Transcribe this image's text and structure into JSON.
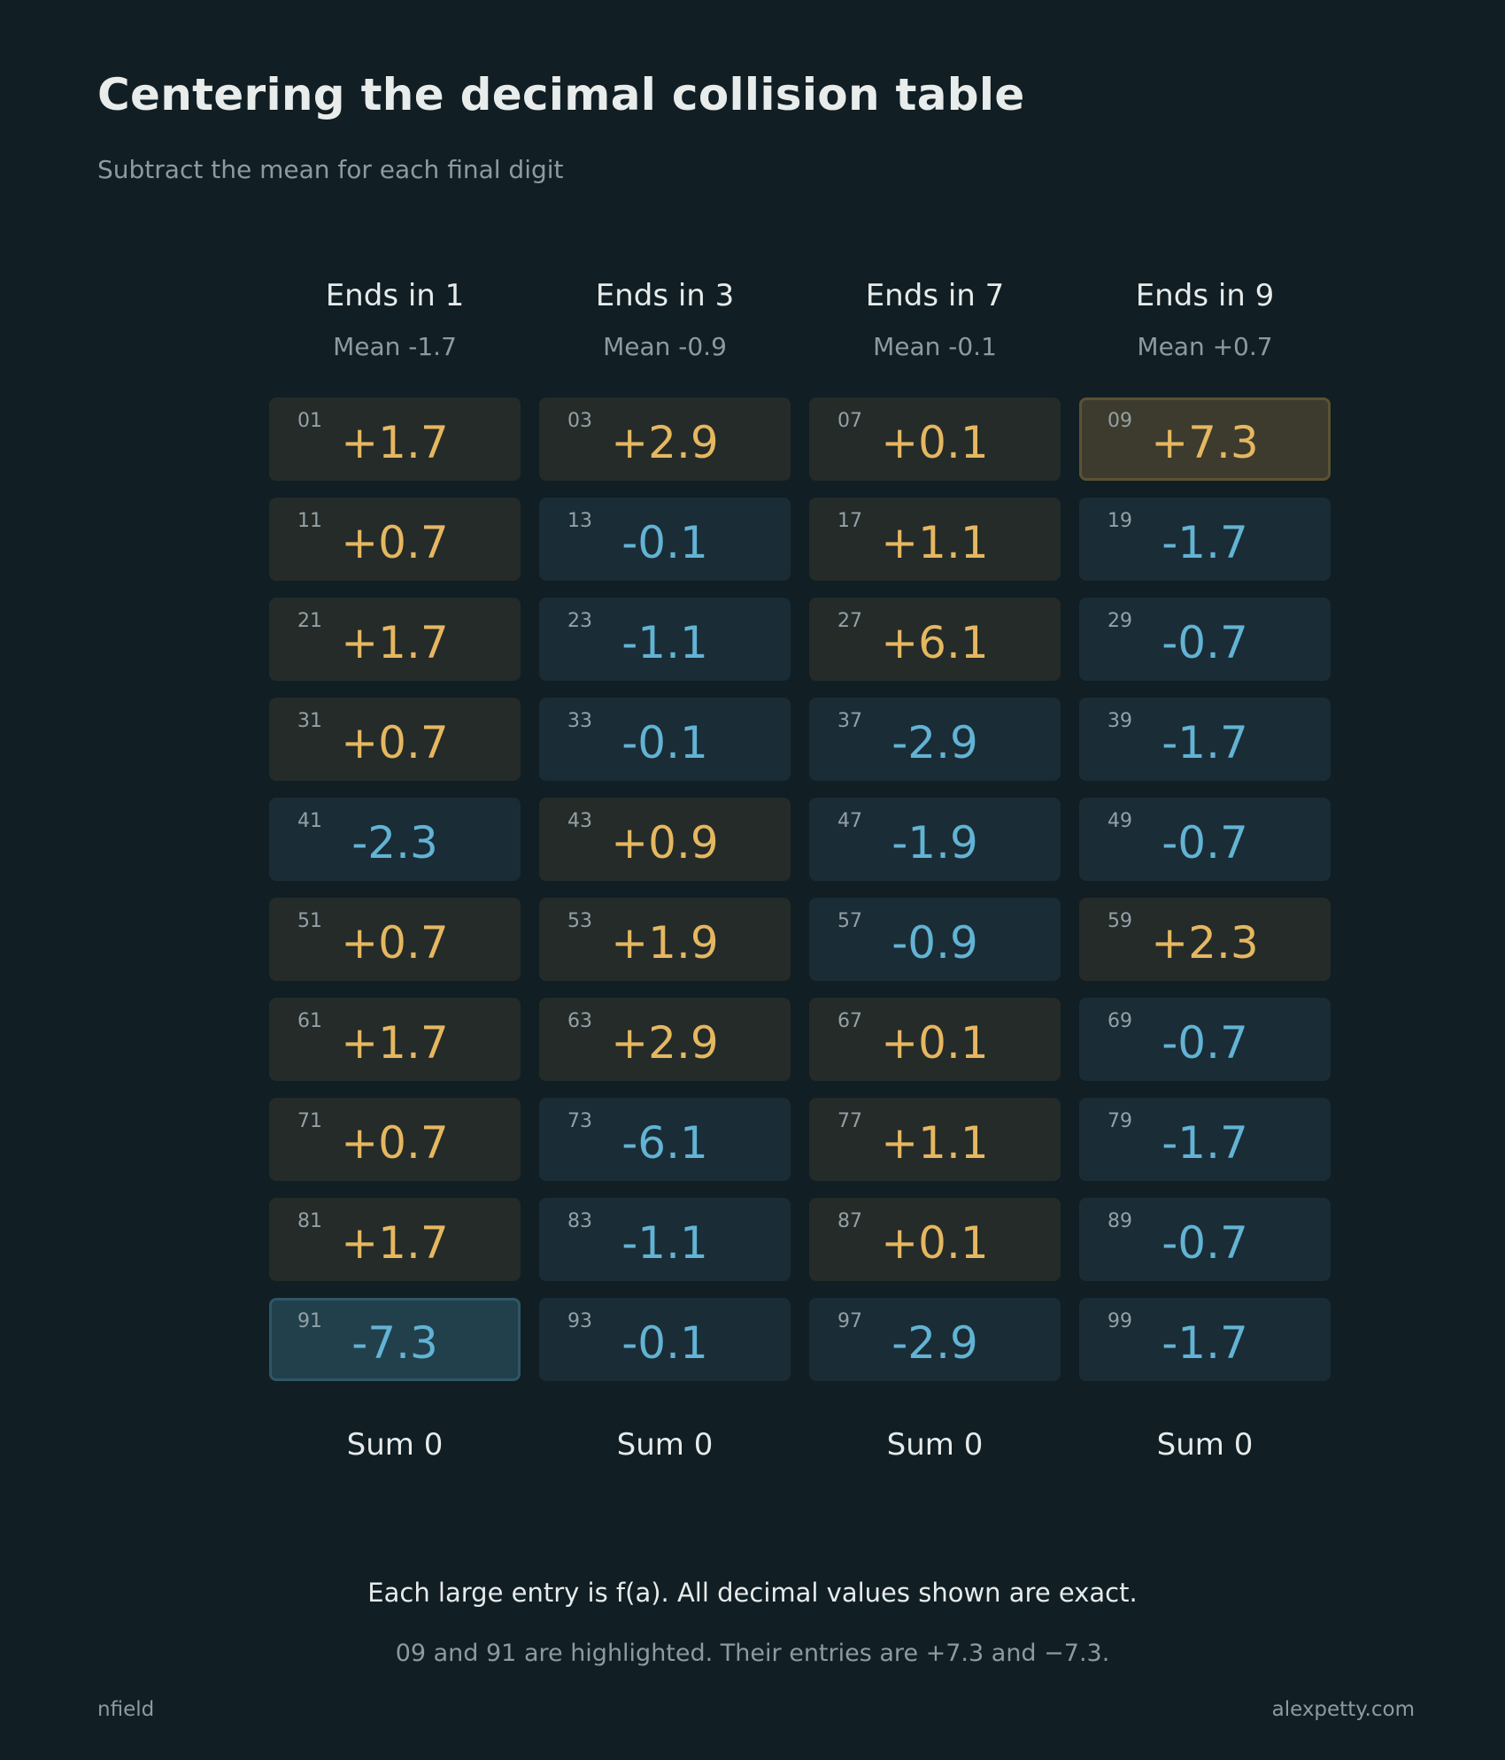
{
  "title": "Centering the decimal collision table",
  "subtitle": "Subtract the mean for each final digit",
  "colors": {
    "background": "#111e24",
    "positive": "#e5b760",
    "negative": "#62b3d4",
    "positive_cell": "#252b29",
    "negative_cell": "#1a2c36"
  },
  "columns": [
    {
      "header": "Ends in 1",
      "mean": "Mean -1.7",
      "sum": "Sum 0",
      "cells": [
        {
          "num": "01",
          "val": "+1.7"
        },
        {
          "num": "11",
          "val": "+0.7"
        },
        {
          "num": "21",
          "val": "+1.7"
        },
        {
          "num": "31",
          "val": "+0.7"
        },
        {
          "num": "41",
          "val": "-2.3"
        },
        {
          "num": "51",
          "val": "+0.7"
        },
        {
          "num": "61",
          "val": "+1.7"
        },
        {
          "num": "71",
          "val": "+0.7"
        },
        {
          "num": "81",
          "val": "+1.7"
        },
        {
          "num": "91",
          "val": "-7.3",
          "highlight": true
        }
      ]
    },
    {
      "header": "Ends in 3",
      "mean": "Mean -0.9",
      "sum": "Sum 0",
      "cells": [
        {
          "num": "03",
          "val": "+2.9"
        },
        {
          "num": "13",
          "val": "-0.1"
        },
        {
          "num": "23",
          "val": "-1.1"
        },
        {
          "num": "33",
          "val": "-0.1"
        },
        {
          "num": "43",
          "val": "+0.9"
        },
        {
          "num": "53",
          "val": "+1.9"
        },
        {
          "num": "63",
          "val": "+2.9"
        },
        {
          "num": "73",
          "val": "-6.1"
        },
        {
          "num": "83",
          "val": "-1.1"
        },
        {
          "num": "93",
          "val": "-0.1"
        }
      ]
    },
    {
      "header": "Ends in 7",
      "mean": "Mean -0.1",
      "sum": "Sum 0",
      "cells": [
        {
          "num": "07",
          "val": "+0.1"
        },
        {
          "num": "17",
          "val": "+1.1"
        },
        {
          "num": "27",
          "val": "+6.1"
        },
        {
          "num": "37",
          "val": "-2.9"
        },
        {
          "num": "47",
          "val": "-1.9"
        },
        {
          "num": "57",
          "val": "-0.9"
        },
        {
          "num": "67",
          "val": "+0.1"
        },
        {
          "num": "77",
          "val": "+1.1"
        },
        {
          "num": "87",
          "val": "+0.1"
        },
        {
          "num": "97",
          "val": "-2.9"
        }
      ]
    },
    {
      "header": "Ends in 9",
      "mean": "Mean +0.7",
      "sum": "Sum 0",
      "cells": [
        {
          "num": "09",
          "val": "+7.3",
          "highlight": true
        },
        {
          "num": "19",
          "val": "-1.7"
        },
        {
          "num": "29",
          "val": "-0.7"
        },
        {
          "num": "39",
          "val": "-1.7"
        },
        {
          "num": "49",
          "val": "-0.7"
        },
        {
          "num": "59",
          "val": "+2.3"
        },
        {
          "num": "69",
          "val": "-0.7"
        },
        {
          "num": "79",
          "val": "-1.7"
        },
        {
          "num": "89",
          "val": "-0.7"
        },
        {
          "num": "99",
          "val": "-1.7"
        }
      ]
    }
  ],
  "note_main": "Each large entry is f(a). All decimal values shown are exact.",
  "note_highlight": "09 and 91 are highlighted. Their entries are +7.3 and −7.3.",
  "footer_left": "nfield",
  "footer_right": "alexpetty.com"
}
